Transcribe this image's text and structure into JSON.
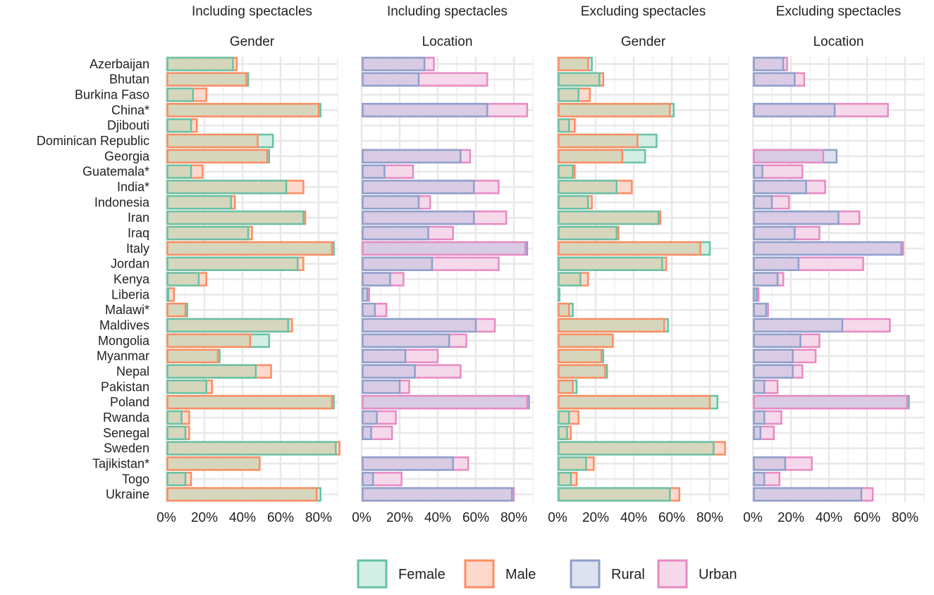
{
  "chart_data": {
    "type": "bar",
    "countries": [
      "Azerbaijan",
      "Bhutan",
      "Burkina Faso",
      "China*",
      "Djibouti",
      "Dominican Republic",
      "Georgia",
      "Guatemala*",
      "India*",
      "Indonesia",
      "Iran",
      "Iraq",
      "Italy",
      "Jordan",
      "Kenya",
      "Liberia",
      "Malawi*",
      "Maldives",
      "Mongolia",
      "Myanmar",
      "Nepal",
      "Pakistan",
      "Poland",
      "Rwanda",
      "Senegal",
      "Sweden",
      "Tajikistan*",
      "Togo",
      "Ukraine"
    ],
    "x_ticks": [
      "0%",
      "20%",
      "40%",
      "60%",
      "80%"
    ],
    "x_tick_values": [
      0,
      20,
      40,
      60,
      80
    ],
    "xlim": [
      0,
      90
    ],
    "legend": [
      {
        "key": "female",
        "label": "Female",
        "stroke": "#66c2a5",
        "fill": "#d3eee5"
      },
      {
        "key": "male",
        "label": "Male",
        "stroke": "#fc8d62",
        "fill": "#fcd9cc"
      },
      {
        "key": "rural",
        "label": "Rural",
        "stroke": "#8da0cb",
        "fill": "#dde1ef"
      },
      {
        "key": "urban",
        "label": "Urban",
        "stroke": "#e78ac3",
        "fill": "#f5d8ea"
      }
    ],
    "overlap_fill": {
      "gender": "#d6d6bc",
      "location": "#d8cbe3"
    },
    "panels": [
      {
        "title": "Including spectacles",
        "subtitle": "Gender",
        "series": [
          {
            "name": "Female",
            "key": "female",
            "values": [
              35,
              43,
              14,
              81,
              13,
              56,
              54,
              13,
              63,
              34,
              72,
              43,
              88,
              69,
              17,
              1,
              11,
              64,
              54,
              28,
              47,
              21,
              88,
              8,
              10,
              89,
              49,
              10,
              81
            ]
          },
          {
            "name": "Male",
            "key": "male",
            "values": [
              37,
              42,
              21,
              80,
              16,
              48,
              53,
              19,
              72,
              36,
              73,
              45,
              87,
              72,
              21,
              4,
              10,
              66,
              44,
              27,
              55,
              24,
              87,
              12,
              12,
              91,
              49,
              13,
              79
            ]
          }
        ]
      },
      {
        "title": "Including spectacles",
        "subtitle": "Location",
        "series": [
          {
            "name": "Rural",
            "key": "rural",
            "values": [
              33,
              30,
              null,
              66,
              null,
              null,
              52,
              12,
              59,
              30,
              59,
              35,
              87,
              37,
              15,
              3,
              7,
              60,
              46,
              23,
              28,
              20,
              88,
              8,
              5,
              null,
              48,
              6,
              79
            ]
          },
          {
            "name": "Urban",
            "key": "urban",
            "values": [
              38,
              66,
              null,
              87,
              null,
              null,
              57,
              27,
              72,
              36,
              76,
              48,
              86,
              72,
              22,
              4,
              13,
              70,
              55,
              40,
              52,
              25,
              87,
              18,
              16,
              null,
              56,
              21,
              80
            ]
          }
        ]
      },
      {
        "title": "Excluding spectacles",
        "subtitle": "Gender",
        "series": [
          {
            "name": "Female",
            "key": "female",
            "values": [
              18,
              22,
              11,
              61,
              6,
              52,
              46,
              8,
              31,
              16,
              53,
              31,
              80,
              55,
              12,
              1,
              8,
              58,
              29,
              24,
              26,
              10,
              84,
              6,
              5,
              82,
              15,
              7,
              59
            ]
          },
          {
            "name": "Male",
            "key": "male",
            "values": [
              16,
              24,
              17,
              59,
              9,
              42,
              34,
              9,
              39,
              18,
              54,
              32,
              75,
              57,
              16,
              0,
              6,
              56,
              29,
              23,
              25,
              8,
              80,
              11,
              7,
              88,
              19,
              10,
              64
            ]
          }
        ]
      },
      {
        "title": "Excluding spectacles",
        "subtitle": "Location",
        "series": [
          {
            "name": "Rural",
            "key": "rural",
            "values": [
              16,
              22,
              null,
              43,
              null,
              null,
              44,
              5,
              28,
              10,
              45,
              22,
              78,
              24,
              13,
              2,
              7,
              47,
              25,
              21,
              21,
              6,
              82,
              6,
              4,
              null,
              17,
              6,
              57
            ]
          },
          {
            "name": "Urban",
            "key": "urban",
            "values": [
              18,
              27,
              null,
              71,
              null,
              null,
              37,
              26,
              38,
              19,
              56,
              35,
              79,
              58,
              16,
              3,
              8,
              72,
              35,
              33,
              26,
              13,
              81,
              15,
              11,
              null,
              31,
              14,
              63
            ]
          }
        ]
      }
    ]
  }
}
